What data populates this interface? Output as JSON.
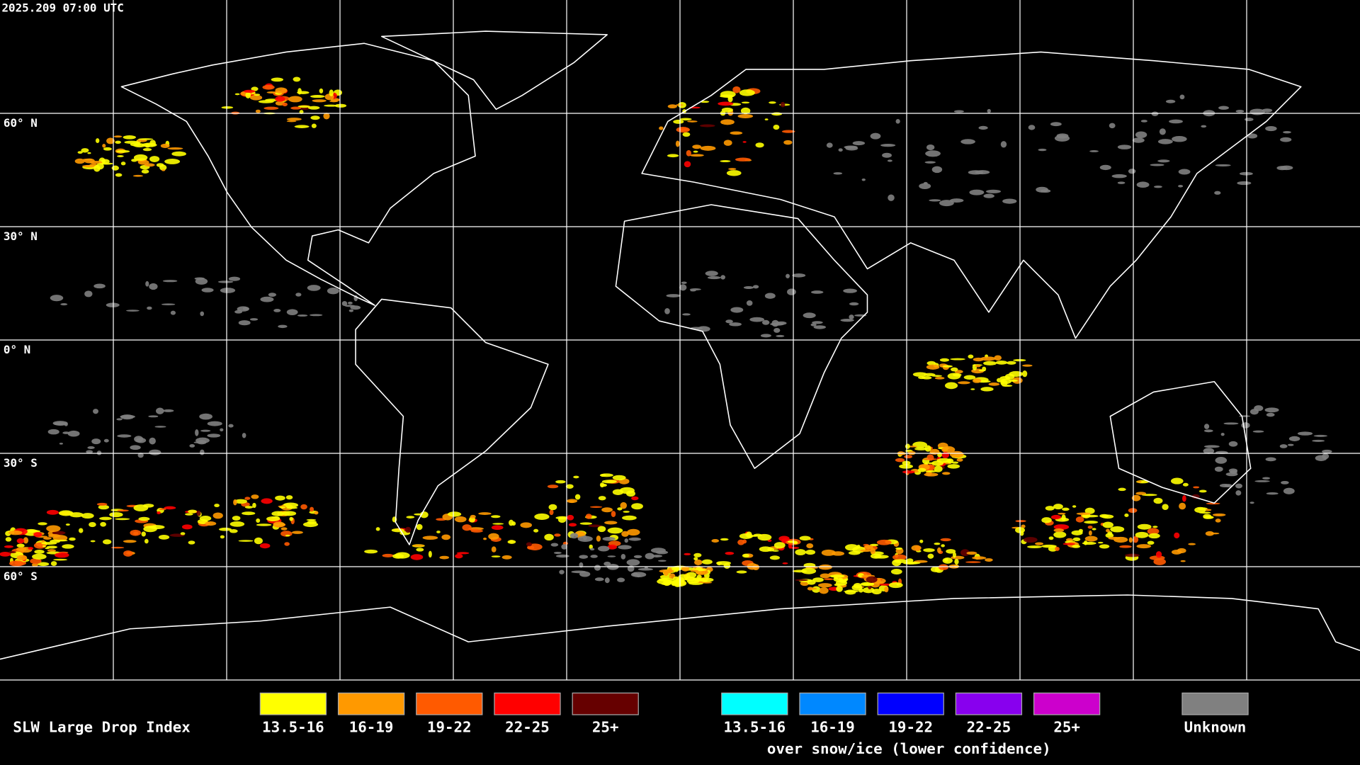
{
  "header": {
    "timestamp": "2025.209 07:00 UTC"
  },
  "map": {
    "latitude_labels": [
      "60° N",
      "30° N",
      "0° N",
      "30° S",
      "60° S"
    ]
  },
  "legend": {
    "title": "SLW Large Drop Index",
    "items": [
      {
        "label": "13.5-16",
        "color": "#ffff00"
      },
      {
        "label": "16-19",
        "color": "#ff9900"
      },
      {
        "label": "19-22",
        "color": "#ff5a00"
      },
      {
        "label": "22-25",
        "color": "#ff0000"
      },
      {
        "label": "25+",
        "color": "#660000"
      }
    ],
    "snow_ice_items": [
      {
        "label": "13.5-16",
        "color": "#00ffff"
      },
      {
        "label": "16-19",
        "color": "#0088ff"
      },
      {
        "label": "19-22",
        "color": "#0000ff"
      },
      {
        "label": "22-25",
        "color": "#8800ee"
      },
      {
        "label": "25+",
        "color": "#cc00cc"
      }
    ],
    "snow_ice_caption": "over snow/ice (lower confidence)",
    "unknown": {
      "label": "Unknown",
      "color": "#808080"
    }
  }
}
